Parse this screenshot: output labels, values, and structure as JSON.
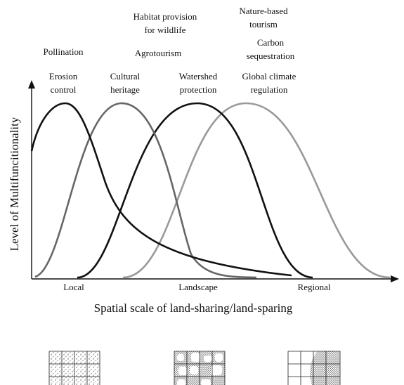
{
  "labels": [
    {
      "lines": [
        "Pollination"
      ]
    },
    {
      "lines": [
        "Erosion",
        "control"
      ]
    },
    {
      "lines": [
        "Cultural",
        "heritage"
      ]
    },
    {
      "lines": [
        "Habitat provision",
        "for wildlife"
      ]
    },
    {
      "lines": [
        "Agrotourism"
      ]
    },
    {
      "lines": [
        "Watershed",
        "protection"
      ]
    },
    {
      "lines": [
        "Nature-based",
        "tourism"
      ]
    },
    {
      "lines": [
        "Carbon",
        "sequestration"
      ]
    },
    {
      "lines": [
        "Global climate",
        "regulation"
      ]
    }
  ],
  "x_axis": {
    "title": "Spatial scale of land-sharing/land-sparing",
    "levels": [
      "Local",
      "Landscape",
      "Regional"
    ]
  },
  "y_axis": {
    "title": "Level of Multifuncitionality"
  }
}
